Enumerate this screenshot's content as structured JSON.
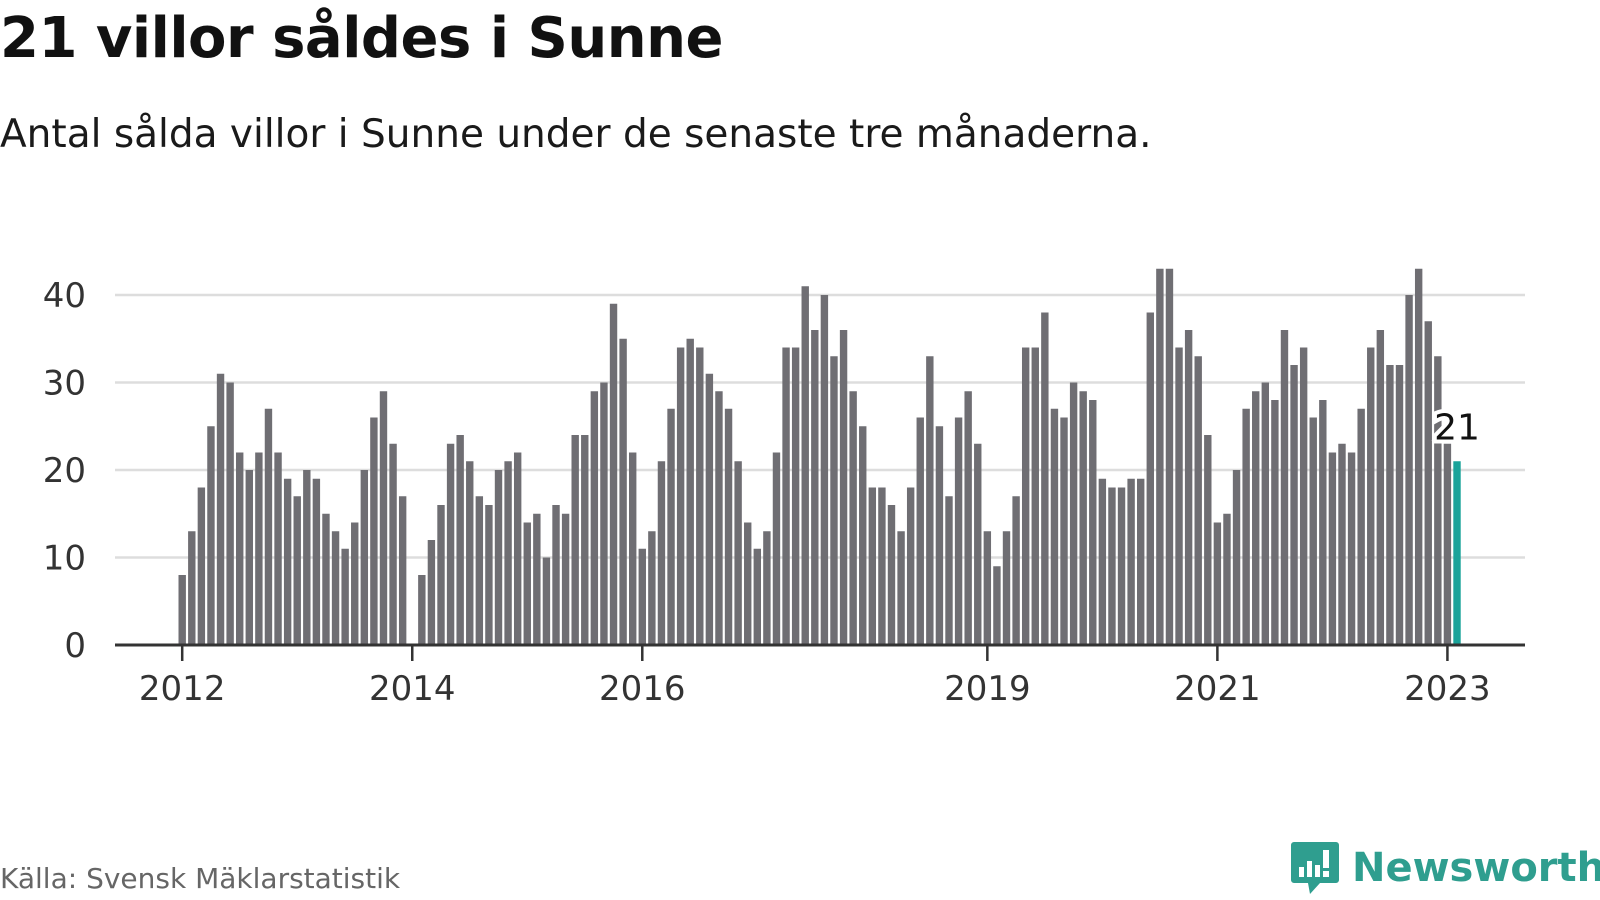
{
  "title": "21 villor såldes i Sunne",
  "subtitle": "Antal sålda villor i Sunne under de senaste tre månaderna.",
  "source": "Källa: Svensk Mäklarstatistik",
  "brand": {
    "name": "Newsworthy",
    "icon": "newsworthy-logo-icon"
  },
  "colors": {
    "bar": "#6f6e73",
    "highlight": "#1aa39a",
    "grid": "#dddddd",
    "axis": "#333333"
  },
  "chart_data": {
    "type": "bar",
    "title": "21 villor såldes i Sunne",
    "subtitle": "Antal sålda villor i Sunne under de senaste tre månaderna.",
    "xlabel": "",
    "ylabel": "",
    "ylim": [
      0,
      45
    ],
    "yticks": [
      0,
      10,
      20,
      30,
      40
    ],
    "grid": true,
    "x_ticks": [
      {
        "label": "2012",
        "month_index": 0
      },
      {
        "label": "2014",
        "month_index": 24
      },
      {
        "label": "2016",
        "month_index": 48
      },
      {
        "label": "2019",
        "month_index": 84
      },
      {
        "label": "2021",
        "month_index": 108
      },
      {
        "label": "2023",
        "month_index": 132
      }
    ],
    "series": [
      {
        "x_start": "2012-01",
        "values": [
          8,
          13,
          18,
          25,
          31,
          30,
          22,
          20,
          22,
          27,
          22,
          19,
          17,
          20,
          19,
          15,
          13,
          11,
          14,
          20,
          26,
          29,
          23,
          17,
          null,
          8,
          12,
          16,
          23,
          24,
          21,
          17,
          16,
          20,
          21,
          22,
          14,
          15,
          10,
          16,
          15,
          24,
          24,
          29,
          30,
          39,
          35,
          22,
          11,
          13,
          21,
          27,
          34,
          35,
          34,
          31,
          29,
          27,
          21,
          14,
          11,
          13,
          22,
          34,
          34,
          41,
          36,
          40,
          33,
          36,
          29,
          25,
          18,
          18,
          16,
          13,
          18,
          26,
          33,
          25,
          17,
          26,
          29,
          23,
          13,
          9,
          13,
          17,
          34,
          34,
          38,
          27,
          26,
          30,
          29,
          28,
          19,
          18,
          18,
          19,
          19,
          38,
          43,
          43,
          34,
          36,
          33,
          24,
          14,
          15,
          20,
          27,
          29,
          30,
          28,
          36,
          32,
          34,
          26,
          28,
          22,
          23,
          22,
          27,
          34,
          36,
          32,
          32,
          40,
          43,
          37,
          33,
          23,
          21
        ]
      }
    ],
    "highlight": {
      "x": "2023-02",
      "value": 21,
      "label": "21"
    }
  }
}
